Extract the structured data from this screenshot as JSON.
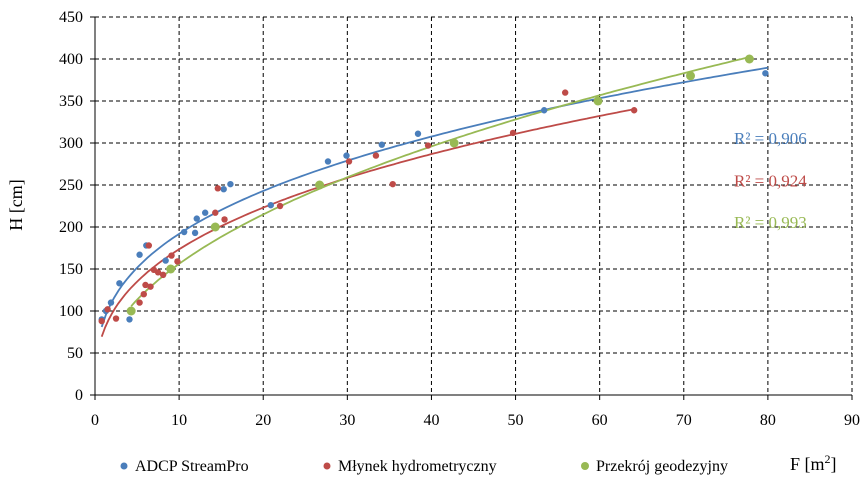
{
  "chart_data": {
    "type": "scatter",
    "xlabel": "F [m²]",
    "xlabel_main": "F  [m",
    "xlabel_sup": "2",
    "xlabel_close": "]",
    "ylabel": "H  [cm]",
    "xlim": [
      0,
      90
    ],
    "ylim": [
      0,
      450
    ],
    "xticks": [
      0,
      10,
      20,
      30,
      40,
      50,
      60,
      70,
      80,
      90
    ],
    "yticks": [
      0,
      50,
      100,
      150,
      200,
      250,
      300,
      350,
      400,
      450
    ],
    "grid": "dashed",
    "legend_position": "bottom",
    "series": [
      {
        "name": "ADCP StreamPro",
        "color": "#4a7ebb",
        "r2": "R² = 0,906",
        "trend": "power",
        "trend_range": [
          0.8,
          80
        ],
        "points": [
          [
            0.8,
            90
          ],
          [
            1.3,
            100
          ],
          [
            1.9,
            110
          ],
          [
            2.9,
            133
          ],
          [
            4.1,
            90
          ],
          [
            5.3,
            167
          ],
          [
            6.1,
            178
          ],
          [
            8.4,
            160
          ],
          [
            10.6,
            194
          ],
          [
            11.9,
            193
          ],
          [
            12.1,
            210
          ],
          [
            13.1,
            217
          ],
          [
            15.3,
            245
          ],
          [
            16.1,
            251
          ],
          [
            20.9,
            226
          ],
          [
            27.7,
            278
          ],
          [
            29.9,
            285
          ],
          [
            34.1,
            298
          ],
          [
            38.4,
            311
          ],
          [
            53.4,
            339
          ],
          [
            79.7,
            383
          ]
        ]
      },
      {
        "name": "Młynek hydrometryczny",
        "color": "#be4b48",
        "r2": "R² = 0,924",
        "trend": "power",
        "trend_range": [
          0.8,
          64
        ],
        "points": [
          [
            0.8,
            88
          ],
          [
            1.5,
            102
          ],
          [
            2.5,
            91
          ],
          [
            5.3,
            110
          ],
          [
            5.8,
            120
          ],
          [
            6.0,
            131
          ],
          [
            6.4,
            178
          ],
          [
            6.6,
            129
          ],
          [
            7.0,
            149
          ],
          [
            7.5,
            146
          ],
          [
            8.1,
            143
          ],
          [
            9.1,
            166
          ],
          [
            9.8,
            159
          ],
          [
            14.3,
            217
          ],
          [
            14.6,
            246
          ],
          [
            15.4,
            209
          ],
          [
            22.0,
            225
          ],
          [
            30.2,
            278
          ],
          [
            33.4,
            285
          ],
          [
            35.4,
            251
          ],
          [
            39.6,
            297
          ],
          [
            49.7,
            312
          ],
          [
            55.9,
            360
          ],
          [
            64.1,
            339
          ]
        ]
      },
      {
        "name": "Przekrój geodezyjny",
        "color": "#98b954",
        "r2": "R² = 0,993",
        "trend": "power",
        "trend_range": [
          4.3,
          77.8
        ],
        "points": [
          [
            4.3,
            100
          ],
          [
            9.0,
            150
          ],
          [
            14.3,
            200
          ],
          [
            26.7,
            250
          ],
          [
            42.7,
            300
          ],
          [
            59.8,
            350
          ],
          [
            70.8,
            380
          ],
          [
            77.8,
            400
          ]
        ]
      }
    ]
  }
}
